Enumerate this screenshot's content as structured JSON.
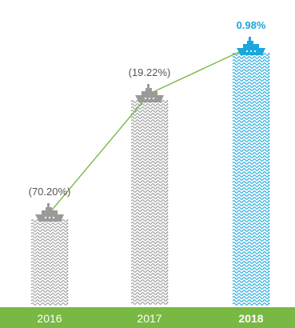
{
  "chart_data": {
    "type": "bar",
    "categories": [
      "2016",
      "2017",
      "2018"
    ],
    "values": [
      -70.2,
      -19.22,
      0.98
    ],
    "value_labels": [
      "(70.20%)",
      "(19.22%)",
      "0.98%"
    ],
    "highlight_category": "2018",
    "trend_line": true,
    "colors": {
      "base_bar": "#9a9a9a",
      "highlight_bar": "#1ba6dd",
      "trend_line": "#79b842",
      "axis_band": "#79b842",
      "label_text": "#555555",
      "highlight_text": "#1ba6dd",
      "axis_text": "#ffffff"
    },
    "icon": "ship-icon",
    "grid": false,
    "legend": "none"
  }
}
